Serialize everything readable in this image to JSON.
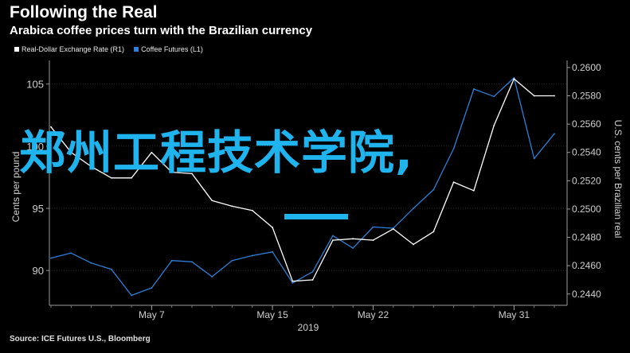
{
  "header": {
    "title": "Following the Real",
    "subtitle": "Arabica coffee prices turn with the Brazilian currency"
  },
  "legend": [
    {
      "label": "Real-Dollar Exchange Rate (R1)",
      "color": "#ffffff"
    },
    {
      "label": "Coffee Futures (L1)",
      "color": "#2f7fd8"
    }
  ],
  "source": "Source: ICE Futures U.S., Bloomberg",
  "overlay": {
    "text": "郑州工程技术学院,"
  },
  "chart_data": {
    "type": "line",
    "title": "Following the Real",
    "subtitle": "Arabica coffee prices turn with the Brazilian currency",
    "x_ticks": [
      "May 7",
      "May 15",
      "May 22",
      "May 31"
    ],
    "x_label_year": "2019",
    "x": [
      "Apr 30",
      "May 1",
      "May 2",
      "May 3",
      "May 6",
      "May 7",
      "May 8",
      "May 9",
      "May 10",
      "May 13",
      "May 14",
      "May 15",
      "May 16",
      "May 17",
      "May 20",
      "May 21",
      "May 22",
      "May 23",
      "May 24",
      "May 27",
      "May 28",
      "May 29",
      "May 30",
      "May 31",
      "Jun 3",
      "Jun 4"
    ],
    "left_axis": {
      "label": "Cents per pound",
      "ticks": [
        90,
        95,
        100,
        105
      ],
      "range": [
        87.2,
        106.9
      ]
    },
    "right_axis": {
      "label": "U.S. cents per Brazilian real",
      "ticks": [
        "0.2440",
        "0.2460",
        "0.2480",
        "0.2500",
        "0.2520",
        "0.2540",
        "0.2560",
        "0.2580",
        "0.2600"
      ],
      "range": [
        0.2432,
        0.2605
      ]
    },
    "series": [
      {
        "name": "Coffee Futures (L1)",
        "axis": "left",
        "color": "#2f7fd8",
        "values": [
          91.0,
          91.4,
          90.6,
          90.1,
          88.0,
          88.6,
          90.8,
          90.7,
          89.5,
          90.8,
          91.2,
          91.5,
          89.0,
          89.9,
          92.8,
          91.8,
          93.5,
          93.4,
          95.0,
          96.5,
          99.8,
          104.6,
          104.0,
          105.5,
          99.0,
          101.0
        ]
      },
      {
        "name": "Real-Dollar Exchange Rate (R1)",
        "axis": "right",
        "color": "#ffffff",
        "values": [
          0.2558,
          0.254,
          0.253,
          0.2522,
          0.2522,
          0.254,
          0.2526,
          0.2525,
          0.2506,
          0.2502,
          0.2499,
          0.2487,
          0.2449,
          0.245,
          0.2478,
          0.2479,
          0.2478,
          0.2486,
          0.2475,
          0.2484,
          0.2519,
          0.2513,
          0.2559,
          0.2592,
          0.258,
          0.258
        ]
      }
    ]
  }
}
